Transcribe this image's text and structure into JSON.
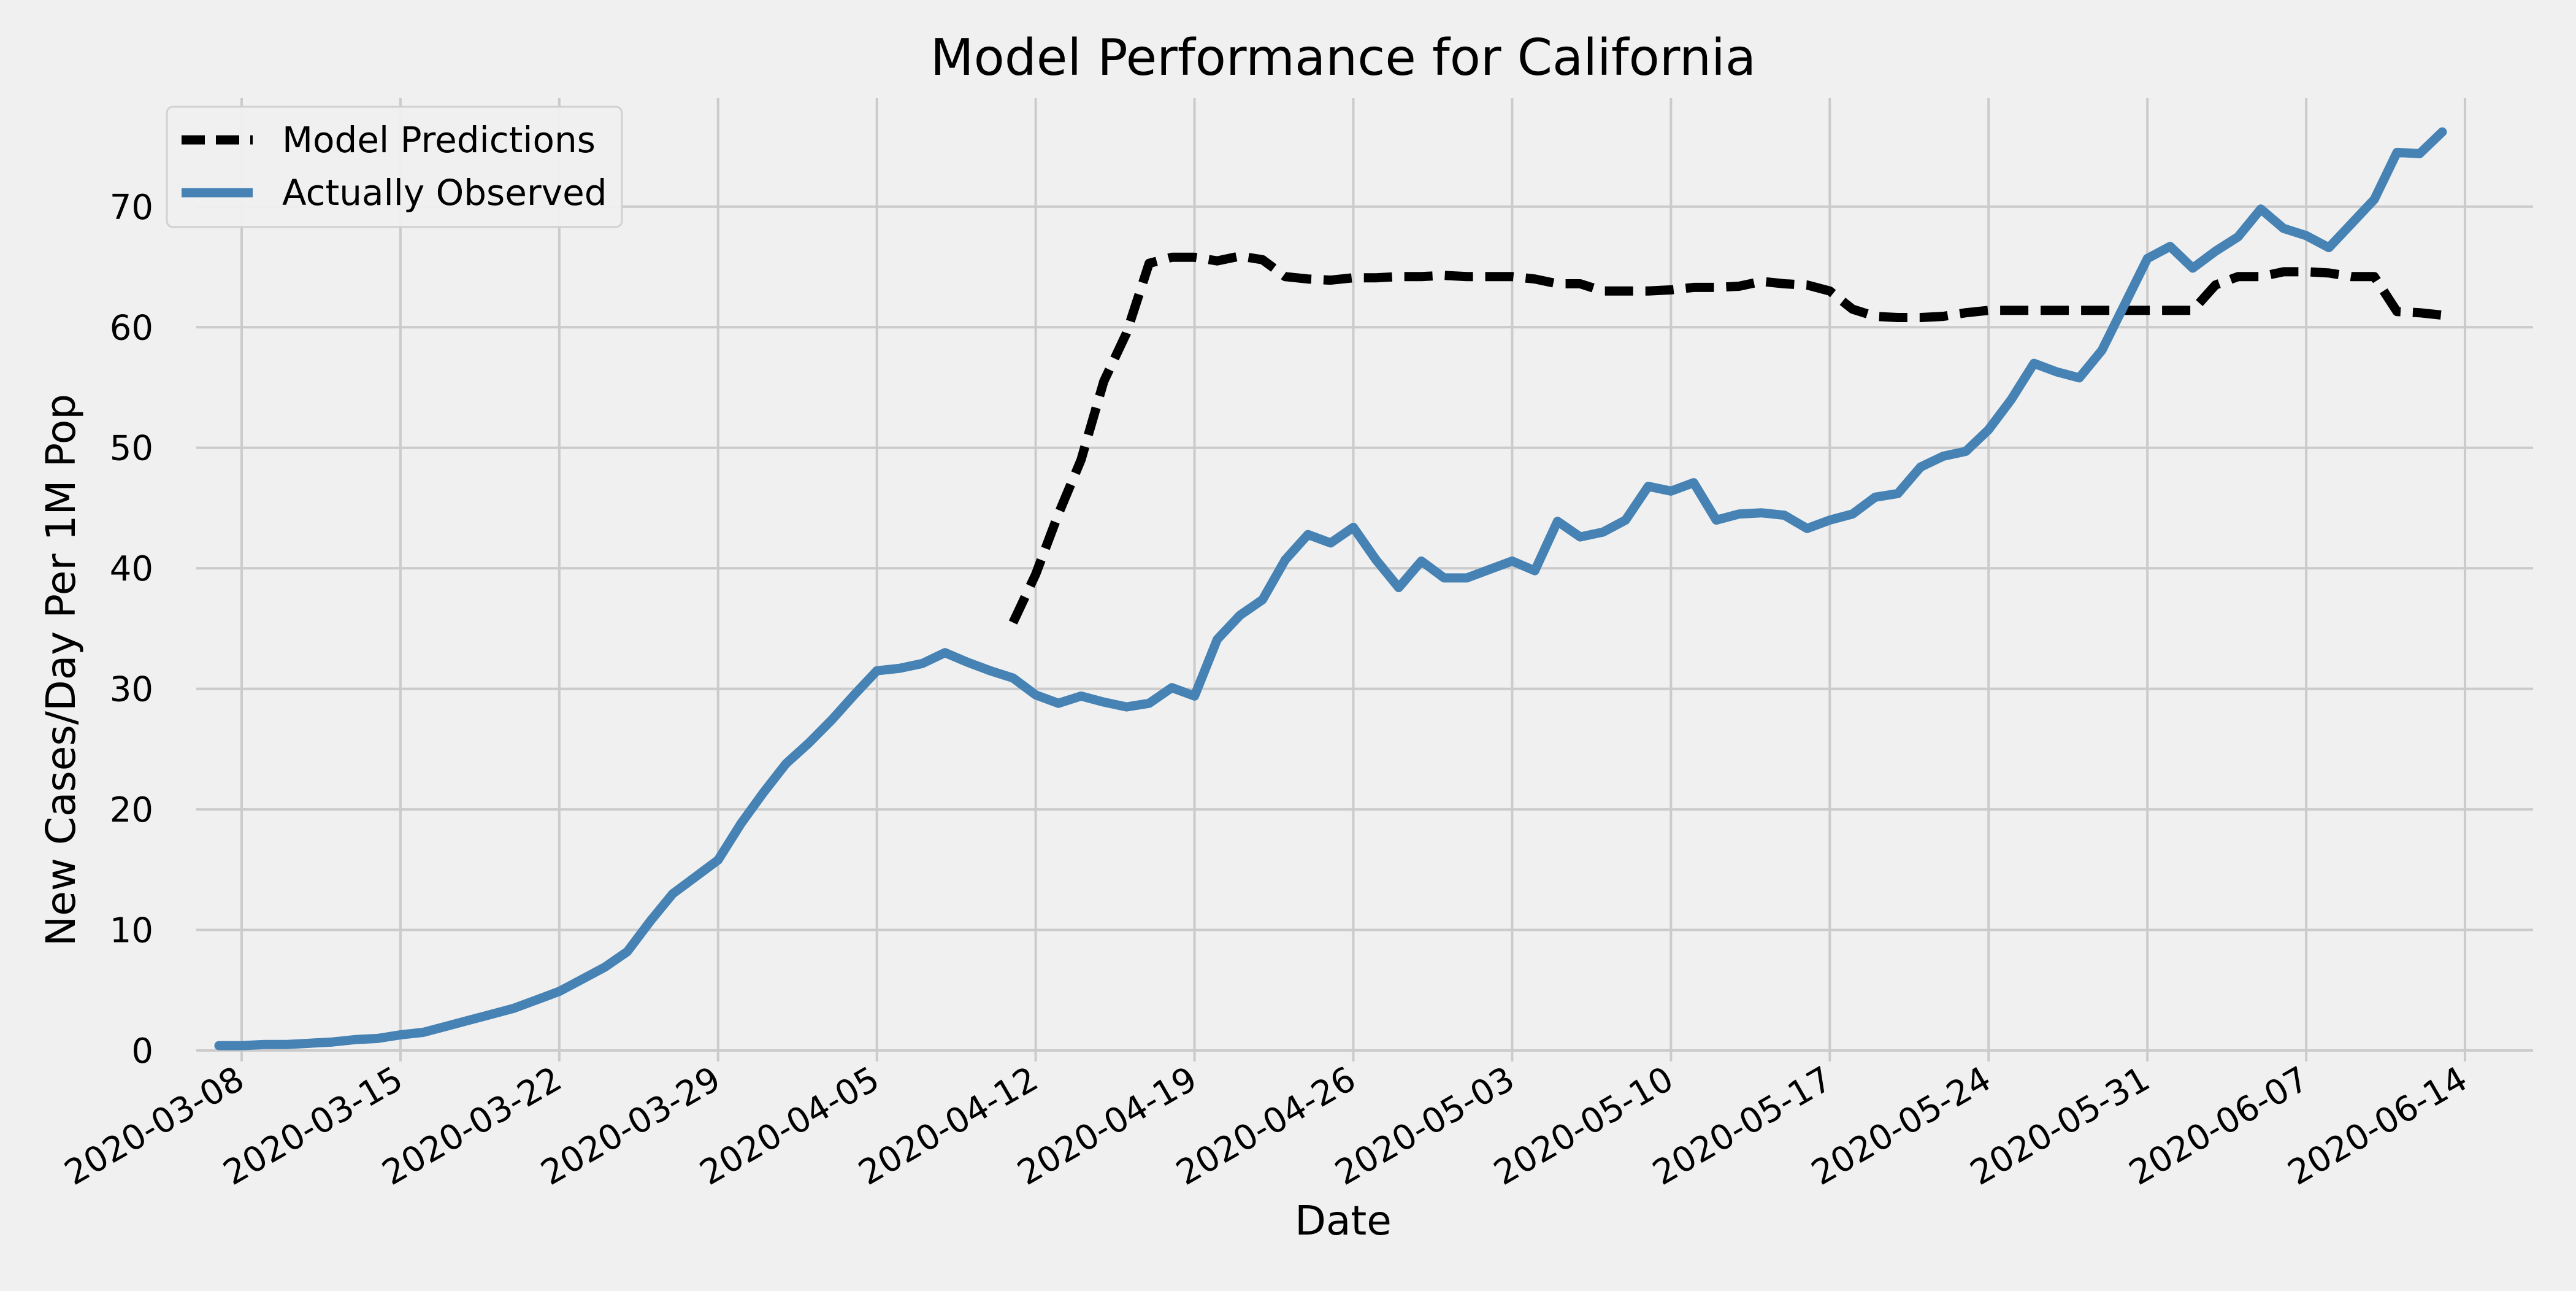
{
  "chart_data": {
    "type": "line",
    "title": "Model Performance for California",
    "xlabel": "Date",
    "ylabel": "New Cases/Day Per 1M Pop",
    "x_axis_type": "date",
    "xlim": [
      "2020-03-06",
      "2020-06-17"
    ],
    "ylim": [
      0,
      79
    ],
    "x_ticks": [
      "2020-03-08",
      "2020-03-15",
      "2020-03-22",
      "2020-03-29",
      "2020-04-05",
      "2020-04-12",
      "2020-04-19",
      "2020-04-26",
      "2020-05-03",
      "2020-05-10",
      "2020-05-17",
      "2020-05-24",
      "2020-05-31",
      "2020-06-07",
      "2020-06-14"
    ],
    "y_ticks": [
      0,
      10,
      20,
      30,
      40,
      50,
      60,
      70
    ],
    "grid": true,
    "legend_position": "top-left",
    "background_color": "#f0f0f0",
    "grid_color": "#cbcbcb",
    "series": [
      {
        "name": "Model Predictions",
        "color": "#000000",
        "style": "dashed",
        "points": [
          [
            "2020-04-11",
            35.5
          ],
          [
            "2020-04-12",
            39.5
          ],
          [
            "2020-04-13",
            44.5
          ],
          [
            "2020-04-14",
            49.0
          ],
          [
            "2020-04-15",
            55.5
          ],
          [
            "2020-04-16",
            59.5
          ],
          [
            "2020-04-17",
            65.3
          ],
          [
            "2020-04-18",
            65.8
          ],
          [
            "2020-04-19",
            65.8
          ],
          [
            "2020-04-20",
            65.5
          ],
          [
            "2020-04-21",
            65.9
          ],
          [
            "2020-04-22",
            65.6
          ],
          [
            "2020-04-23",
            64.2
          ],
          [
            "2020-04-24",
            64.0
          ],
          [
            "2020-04-25",
            63.9
          ],
          [
            "2020-04-26",
            64.1
          ],
          [
            "2020-04-27",
            64.1
          ],
          [
            "2020-04-28",
            64.2
          ],
          [
            "2020-04-29",
            64.2
          ],
          [
            "2020-04-30",
            64.3
          ],
          [
            "2020-05-01",
            64.2
          ],
          [
            "2020-05-02",
            64.2
          ],
          [
            "2020-05-03",
            64.2
          ],
          [
            "2020-05-04",
            64.0
          ],
          [
            "2020-05-05",
            63.6
          ],
          [
            "2020-05-06",
            63.6
          ],
          [
            "2020-05-07",
            63.0
          ],
          [
            "2020-05-08",
            63.0
          ],
          [
            "2020-05-09",
            63.0
          ],
          [
            "2020-05-10",
            63.1
          ],
          [
            "2020-05-11",
            63.3
          ],
          [
            "2020-05-12",
            63.3
          ],
          [
            "2020-05-13",
            63.4
          ],
          [
            "2020-05-14",
            63.8
          ],
          [
            "2020-05-15",
            63.6
          ],
          [
            "2020-05-16",
            63.5
          ],
          [
            "2020-05-17",
            63.0
          ],
          [
            "2020-05-18",
            61.5
          ],
          [
            "2020-05-19",
            60.9
          ],
          [
            "2020-05-20",
            60.8
          ],
          [
            "2020-05-21",
            60.8
          ],
          [
            "2020-05-22",
            60.9
          ],
          [
            "2020-05-23",
            61.2
          ],
          [
            "2020-05-24",
            61.4
          ],
          [
            "2020-05-25",
            61.4
          ],
          [
            "2020-05-26",
            61.4
          ],
          [
            "2020-05-27",
            61.4
          ],
          [
            "2020-05-28",
            61.4
          ],
          [
            "2020-05-29",
            61.4
          ],
          [
            "2020-05-30",
            61.4
          ],
          [
            "2020-05-31",
            61.4
          ],
          [
            "2020-06-01",
            61.4
          ],
          [
            "2020-06-02",
            61.4
          ],
          [
            "2020-06-03",
            63.5
          ],
          [
            "2020-06-04",
            64.2
          ],
          [
            "2020-06-05",
            64.2
          ],
          [
            "2020-06-06",
            64.6
          ],
          [
            "2020-06-07",
            64.6
          ],
          [
            "2020-06-08",
            64.5
          ],
          [
            "2020-06-09",
            64.2
          ],
          [
            "2020-06-10",
            64.2
          ],
          [
            "2020-06-11",
            61.3
          ],
          [
            "2020-06-12",
            61.2
          ],
          [
            "2020-06-13",
            61.0
          ]
        ]
      },
      {
        "name": "Actually Observed",
        "color": "#4682b4",
        "style": "solid",
        "points": [
          [
            "2020-03-07",
            0.4
          ],
          [
            "2020-03-08",
            0.4
          ],
          [
            "2020-03-09",
            0.5
          ],
          [
            "2020-03-10",
            0.5
          ],
          [
            "2020-03-11",
            0.6
          ],
          [
            "2020-03-12",
            0.7
          ],
          [
            "2020-03-13",
            0.9
          ],
          [
            "2020-03-14",
            1.0
          ],
          [
            "2020-03-15",
            1.3
          ],
          [
            "2020-03-16",
            1.5
          ],
          [
            "2020-03-17",
            2.0
          ],
          [
            "2020-03-18",
            2.5
          ],
          [
            "2020-03-19",
            3.0
          ],
          [
            "2020-03-20",
            3.5
          ],
          [
            "2020-03-21",
            4.2
          ],
          [
            "2020-03-22",
            4.9
          ],
          [
            "2020-03-23",
            5.9
          ],
          [
            "2020-03-24",
            6.9
          ],
          [
            "2020-03-25",
            8.2
          ],
          [
            "2020-03-26",
            10.7
          ],
          [
            "2020-03-27",
            13.0
          ],
          [
            "2020-03-28",
            14.4
          ],
          [
            "2020-03-29",
            15.8
          ],
          [
            "2020-03-30",
            18.8
          ],
          [
            "2020-03-31",
            21.4
          ],
          [
            "2020-04-01",
            23.8
          ],
          [
            "2020-04-02",
            25.5
          ],
          [
            "2020-04-03",
            27.4
          ],
          [
            "2020-04-04",
            29.5
          ],
          [
            "2020-04-05",
            31.5
          ],
          [
            "2020-04-06",
            31.7
          ],
          [
            "2020-04-07",
            32.1
          ],
          [
            "2020-04-08",
            33.0
          ],
          [
            "2020-04-09",
            32.2
          ],
          [
            "2020-04-10",
            31.5
          ],
          [
            "2020-04-11",
            30.9
          ],
          [
            "2020-04-12",
            29.5
          ],
          [
            "2020-04-13",
            28.8
          ],
          [
            "2020-04-14",
            29.4
          ],
          [
            "2020-04-15",
            28.9
          ],
          [
            "2020-04-16",
            28.5
          ],
          [
            "2020-04-17",
            28.8
          ],
          [
            "2020-04-18",
            30.1
          ],
          [
            "2020-04-19",
            29.4
          ],
          [
            "2020-04-20",
            34.1
          ],
          [
            "2020-04-21",
            36.1
          ],
          [
            "2020-04-22",
            37.4
          ],
          [
            "2020-04-23",
            40.7
          ],
          [
            "2020-04-24",
            42.8
          ],
          [
            "2020-04-25",
            42.1
          ],
          [
            "2020-04-26",
            43.4
          ],
          [
            "2020-04-27",
            40.7
          ],
          [
            "2020-04-28",
            38.4
          ],
          [
            "2020-04-29",
            40.6
          ],
          [
            "2020-04-30",
            39.2
          ],
          [
            "2020-05-01",
            39.2
          ],
          [
            "2020-05-02",
            39.9
          ],
          [
            "2020-05-03",
            40.6
          ],
          [
            "2020-05-04",
            39.8
          ],
          [
            "2020-05-05",
            43.9
          ],
          [
            "2020-05-06",
            42.6
          ],
          [
            "2020-05-07",
            43.0
          ],
          [
            "2020-05-08",
            44.0
          ],
          [
            "2020-05-09",
            46.8
          ],
          [
            "2020-05-10",
            46.4
          ],
          [
            "2020-05-11",
            47.1
          ],
          [
            "2020-05-12",
            44.0
          ],
          [
            "2020-05-13",
            44.5
          ],
          [
            "2020-05-14",
            44.6
          ],
          [
            "2020-05-15",
            44.4
          ],
          [
            "2020-05-16",
            43.3
          ],
          [
            "2020-05-17",
            44.0
          ],
          [
            "2020-05-18",
            44.5
          ],
          [
            "2020-05-19",
            45.9
          ],
          [
            "2020-05-20",
            46.2
          ],
          [
            "2020-05-21",
            48.4
          ],
          [
            "2020-05-22",
            49.3
          ],
          [
            "2020-05-23",
            49.7
          ],
          [
            "2020-05-24",
            51.5
          ],
          [
            "2020-05-25",
            54.0
          ],
          [
            "2020-05-26",
            57.0
          ],
          [
            "2020-05-27",
            56.3
          ],
          [
            "2020-05-28",
            55.8
          ],
          [
            "2020-05-29",
            58.1
          ],
          [
            "2020-05-30",
            61.9
          ],
          [
            "2020-05-31",
            65.7
          ],
          [
            "2020-06-01",
            66.7
          ],
          [
            "2020-06-02",
            64.9
          ],
          [
            "2020-06-03",
            66.3
          ],
          [
            "2020-06-04",
            67.5
          ],
          [
            "2020-06-05",
            69.8
          ],
          [
            "2020-06-06",
            68.2
          ],
          [
            "2020-06-07",
            67.6
          ],
          [
            "2020-06-08",
            66.6
          ],
          [
            "2020-06-09",
            68.6
          ],
          [
            "2020-06-10",
            70.6
          ],
          [
            "2020-06-11",
            74.5
          ],
          [
            "2020-06-12",
            74.4
          ],
          [
            "2020-06-13",
            76.2
          ]
        ]
      }
    ]
  }
}
